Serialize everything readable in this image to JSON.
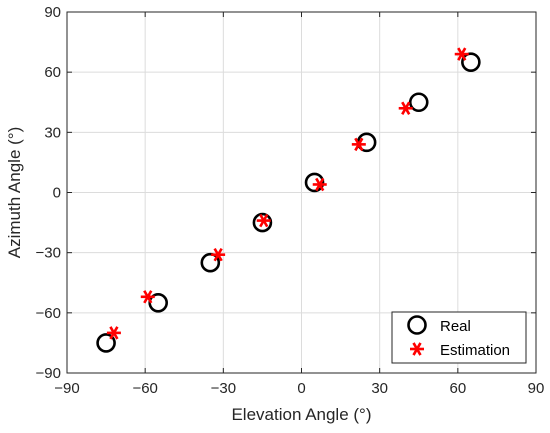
{
  "chart_data": {
    "type": "scatter",
    "title": "",
    "xlabel": "Elevation Angle (°)",
    "ylabel": "Azimuth Angle (°)",
    "xlim": [
      -90,
      90
    ],
    "ylim": [
      -90,
      90
    ],
    "xticks": [
      -90,
      -60,
      -30,
      0,
      30,
      60,
      90
    ],
    "yticks": [
      -90,
      -60,
      -30,
      0,
      30,
      60,
      90
    ],
    "grid": true,
    "legend_position": "bottom-right",
    "series": [
      {
        "name": "Real",
        "marker": "circle",
        "color": "#000000",
        "points": [
          {
            "x": -75,
            "y": -75
          },
          {
            "x": -55,
            "y": -55
          },
          {
            "x": -35,
            "y": -35
          },
          {
            "x": -15,
            "y": -15
          },
          {
            "x": 5,
            "y": 5
          },
          {
            "x": 25,
            "y": 25
          },
          {
            "x": 45,
            "y": 45
          },
          {
            "x": 65,
            "y": 65
          }
        ]
      },
      {
        "name": "Estimation",
        "marker": "asterisk",
        "color": "#ff0000",
        "points": [
          {
            "x": -72,
            "y": -70
          },
          {
            "x": -59,
            "y": -52
          },
          {
            "x": -32,
            "y": -31
          },
          {
            "x": -14.5,
            "y": -14
          },
          {
            "x": 7,
            "y": 4
          },
          {
            "x": 22,
            "y": 24
          },
          {
            "x": 40,
            "y": 42
          },
          {
            "x": 61.5,
            "y": 69
          }
        ]
      }
    ]
  }
}
